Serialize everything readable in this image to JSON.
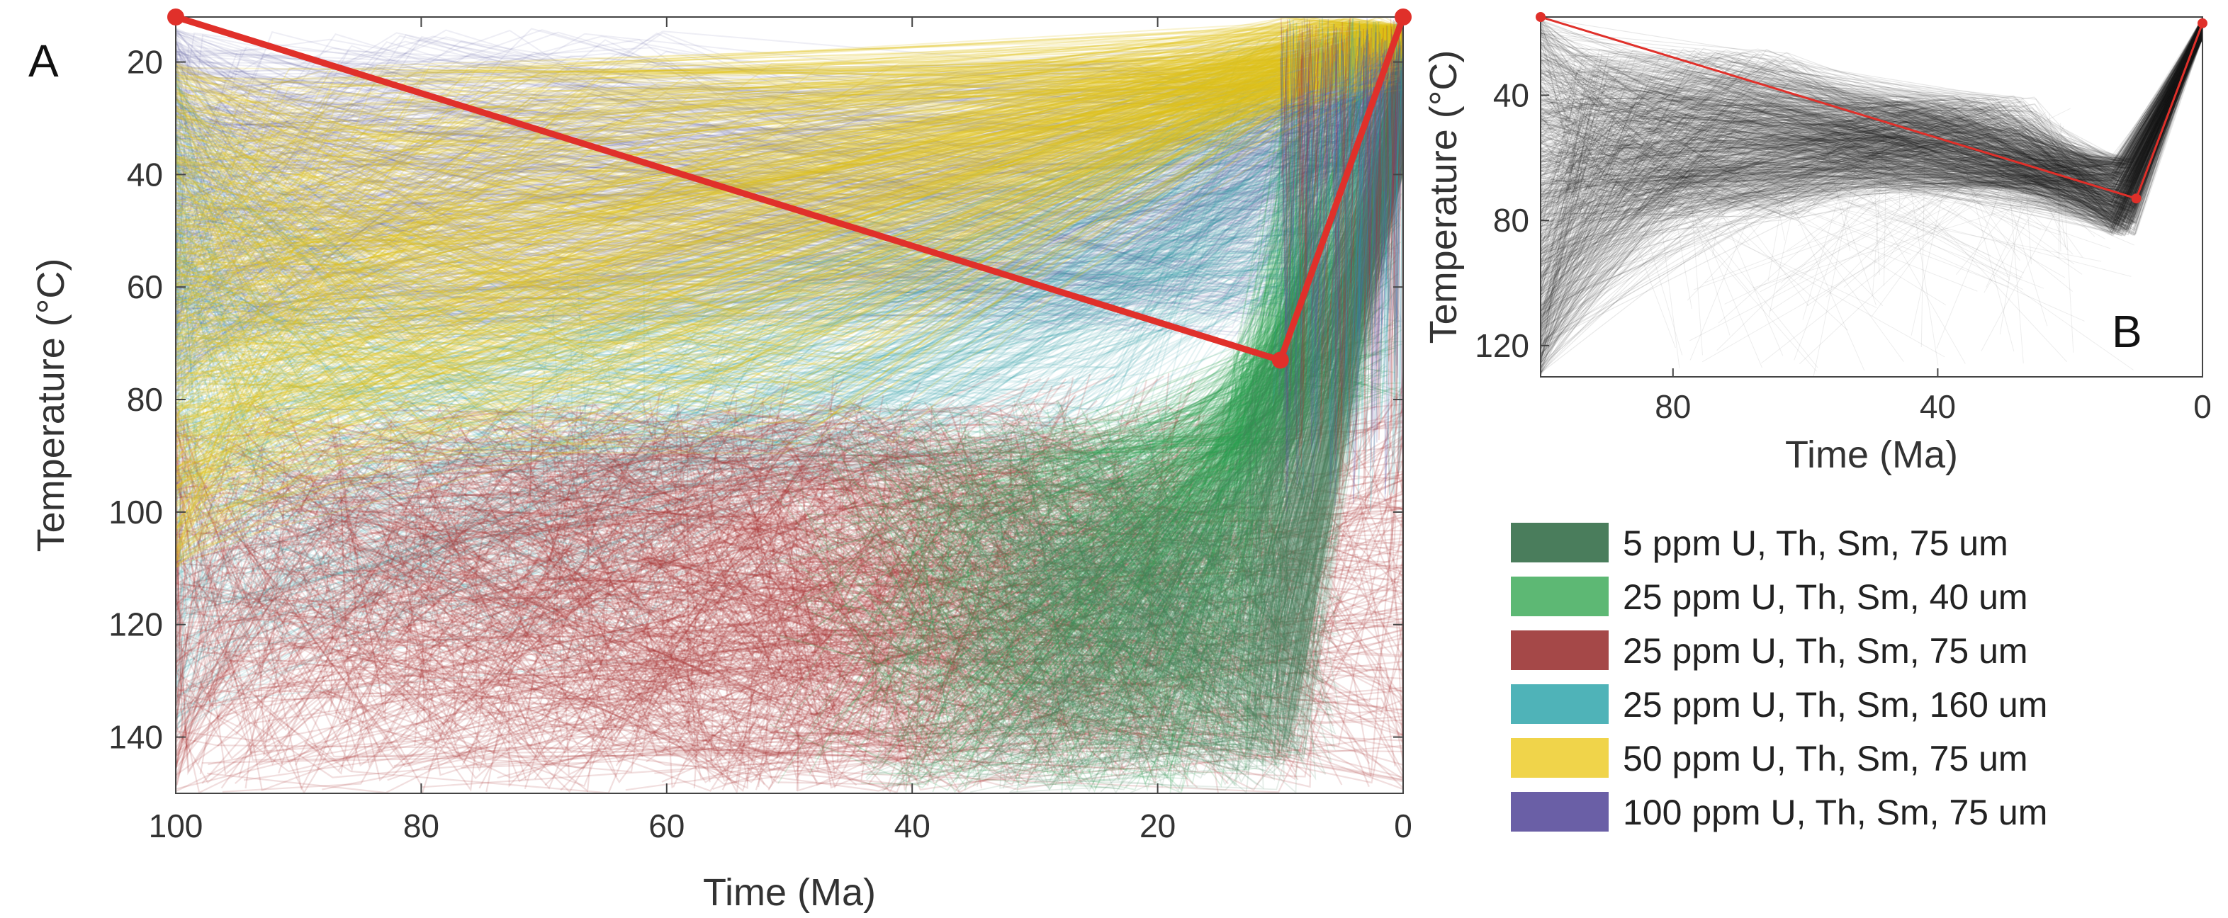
{
  "chart_data": [
    {
      "panel": "A",
      "type": "line",
      "xlabel": "Time (Ma)",
      "ylabel": "Temperature (°C)",
      "xlim": [
        100,
        0
      ],
      "ylim": [
        150,
        12
      ],
      "xticks": [
        100,
        80,
        60,
        40,
        20,
        0
      ],
      "yticks": [
        20,
        40,
        60,
        80,
        100,
        120,
        140
      ],
      "best_fit_path": {
        "color": "#e0302a",
        "points": [
          [
            100,
            12
          ],
          [
            10,
            73
          ],
          [
            0,
            12
          ]
        ]
      },
      "note": "Dense cloud of thousands of candidate time-temperature paths colored by model scenario",
      "series": [
        {
          "name": "5 ppm U, Th, Sm, 75 um",
          "color": "#4a7d5c"
        },
        {
          "name": "25 ppm U, Th, Sm, 40 um",
          "color": "#2ea34f"
        },
        {
          "name": "25 ppm U, Th, Sm, 75 um",
          "color": "#a83232"
        },
        {
          "name": "25 ppm U, Th, Sm, 160 um",
          "color": "#2a9aa3"
        },
        {
          "name": "50 ppm U, Th, Sm, 75 um",
          "color": "#e0c21a"
        },
        {
          "name": "100 ppm U, Th, Sm, 75 um",
          "color": "#5a54a0"
        }
      ]
    },
    {
      "panel": "B",
      "type": "line",
      "xlabel": "Time (Ma)",
      "ylabel": "Temperature (°C)",
      "xlim": [
        100,
        0
      ],
      "ylim": [
        130,
        15
      ],
      "xticks": [
        80,
        40,
        0
      ],
      "yticks": [
        40,
        80,
        120
      ],
      "best_fit_path": {
        "color": "#e0302a",
        "points": [
          [
            100,
            15
          ],
          [
            10,
            73
          ],
          [
            0,
            17
          ]
        ]
      },
      "path_color": "#1a1a1a"
    }
  ],
  "legend": [
    {
      "label": "5 ppm U, Th, Sm, 75 um",
      "color": "#4a7d5c"
    },
    {
      "label": "25 ppm U, Th, Sm, 40 um",
      "color": "#5db874"
    },
    {
      "label": "25 ppm U, Th, Sm, 75 um",
      "color": "#a54848"
    },
    {
      "label": "25 ppm U, Th, Sm, 160 um",
      "color": "#4fb3b8"
    },
    {
      "label": "50 ppm U, Th, Sm, 75 um",
      "color": "#f0d44a"
    },
    {
      "label": "100 ppm U, Th, Sm, 75 um",
      "color": "#6a5fa6"
    }
  ]
}
